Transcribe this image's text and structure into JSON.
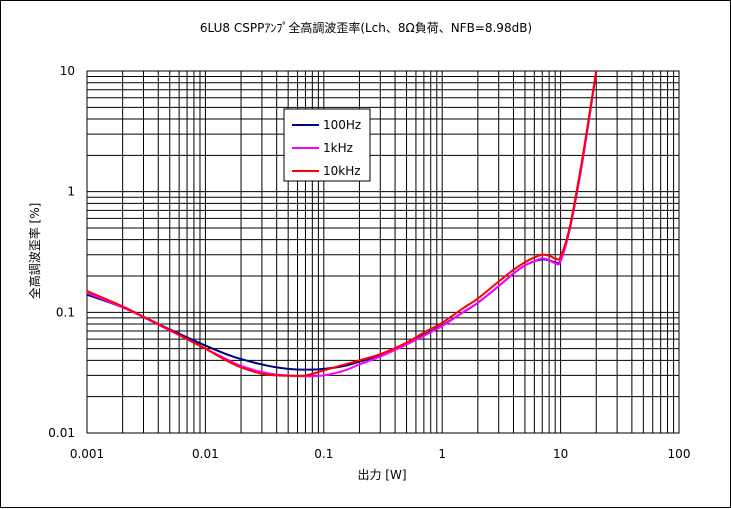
{
  "chart_data": {
    "type": "line",
    "title": "6LU8 CSPPｱﾝﾌﾟ全高調波歪率(Lch、8Ω負荷、NFB=8.98dB)",
    "xlabel": "出力 [W]",
    "ylabel": "全高調波歪率 [%]",
    "x_scale": "log",
    "y_scale": "log",
    "xlim": [
      0.001,
      100
    ],
    "ylim": [
      0.01,
      10
    ],
    "x_ticks": [
      "0.001",
      "0.01",
      "0.1",
      "1",
      "10",
      "100"
    ],
    "y_ticks": [
      "10",
      "1",
      "0.1",
      "0.01"
    ],
    "grid": true,
    "legend_position": "upper-left-inside",
    "series": [
      {
        "name": "100Hz",
        "color": "#000080",
        "x": [
          0.001,
          0.002,
          0.004,
          0.007,
          0.01,
          0.015,
          0.02,
          0.03,
          0.04,
          0.05,
          0.07,
          0.1,
          0.15,
          0.2,
          0.3,
          0.5,
          0.7,
          1,
          1.5,
          2,
          3,
          4,
          5,
          6,
          7,
          8,
          9,
          10,
          12,
          15,
          18,
          20
        ],
        "y": [
          0.14,
          0.11,
          0.08,
          0.062,
          0.053,
          0.045,
          0.041,
          0.037,
          0.035,
          0.034,
          0.0335,
          0.034,
          0.036,
          0.039,
          0.044,
          0.055,
          0.065,
          0.078,
          0.1,
          0.12,
          0.165,
          0.21,
          0.245,
          0.265,
          0.275,
          0.27,
          0.26,
          0.27,
          0.5,
          1.6,
          5.0,
          10
        ]
      },
      {
        "name": "1kHz",
        "color": "#ff00ff",
        "x": [
          0.001,
          0.002,
          0.004,
          0.007,
          0.01,
          0.015,
          0.02,
          0.03,
          0.04,
          0.05,
          0.07,
          0.1,
          0.15,
          0.2,
          0.3,
          0.5,
          0.7,
          1,
          1.5,
          2,
          3,
          4,
          5,
          6,
          7,
          8,
          9,
          10,
          12,
          15,
          18,
          20
        ],
        "y": [
          0.145,
          0.11,
          0.079,
          0.06,
          0.05,
          0.041,
          0.036,
          0.032,
          0.0305,
          0.03,
          0.0295,
          0.03,
          0.033,
          0.037,
          0.043,
          0.054,
          0.064,
          0.077,
          0.1,
          0.12,
          0.165,
          0.21,
          0.245,
          0.265,
          0.28,
          0.27,
          0.255,
          0.265,
          0.5,
          1.6,
          5.0,
          10
        ]
      },
      {
        "name": "10kHz",
        "color": "#ff0000",
        "x": [
          0.001,
          0.002,
          0.004,
          0.007,
          0.01,
          0.015,
          0.02,
          0.03,
          0.04,
          0.05,
          0.07,
          0.1,
          0.15,
          0.2,
          0.3,
          0.5,
          0.7,
          1,
          1.5,
          2,
          3,
          4,
          5,
          6,
          7,
          8,
          9,
          10,
          12,
          15,
          18,
          20
        ],
        "y": [
          0.15,
          0.112,
          0.08,
          0.06,
          0.05,
          0.04,
          0.035,
          0.031,
          0.03,
          0.0298,
          0.03,
          0.033,
          0.037,
          0.04,
          0.045,
          0.056,
          0.068,
          0.082,
          0.108,
          0.13,
          0.18,
          0.225,
          0.26,
          0.285,
          0.3,
          0.295,
          0.28,
          0.29,
          0.52,
          1.7,
          5.2,
          10
        ]
      }
    ]
  }
}
